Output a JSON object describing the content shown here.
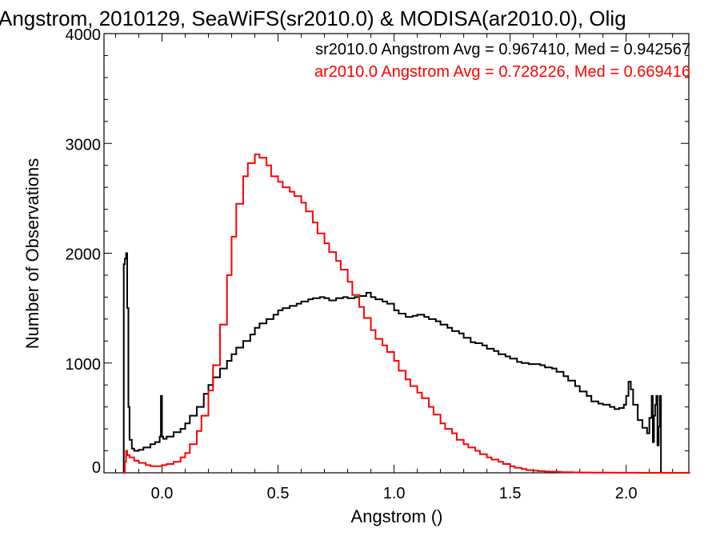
{
  "chart_data": {
    "type": "line",
    "title": "Angstrom, 2010129, SeaWiFS(sr2010.0) & MODISA(ar2010.0), Olig",
    "xlabel": "Angstrom ()",
    "ylabel": "Number of Observations",
    "xlim": [
      -0.25,
      2.27
    ],
    "ylim": [
      0,
      4000
    ],
    "x_ticks": [
      "0.0",
      "0.5",
      "1.0",
      "1.5",
      "2.0"
    ],
    "y_ticks": [
      "0",
      "1000",
      "2000",
      "3000",
      "4000"
    ],
    "grid": false,
    "annotations": [
      {
        "text": "sr2010.0 Angstrom Avg = 0.967410, Med = 0.942567",
        "color": "#000000"
      },
      {
        "text": "ar2010.0 Angstrom Avg = 0.728226, Med = 0.669416",
        "color": "#ff0000"
      }
    ],
    "series": [
      {
        "color": "#000000",
        "x": [
          -0.17,
          -0.165,
          -0.16,
          -0.155,
          -0.15,
          -0.145,
          -0.14,
          -0.13,
          -0.12,
          -0.1,
          -0.08,
          -0.05,
          -0.03,
          -0.01,
          -0.005,
          0.0,
          0.005,
          0.02,
          0.05,
          0.08,
          0.1,
          0.12,
          0.15,
          0.18,
          0.2,
          0.22,
          0.25,
          0.28,
          0.3,
          0.32,
          0.35,
          0.38,
          0.4,
          0.42,
          0.45,
          0.48,
          0.5,
          0.52,
          0.55,
          0.58,
          0.6,
          0.63,
          0.65,
          0.68,
          0.7,
          0.72,
          0.75,
          0.78,
          0.8,
          0.83,
          0.85,
          0.88,
          0.9,
          0.92,
          0.95,
          0.97,
          1.0,
          1.02,
          1.05,
          1.08,
          1.1,
          1.13,
          1.15,
          1.18,
          1.2,
          1.23,
          1.25,
          1.28,
          1.3,
          1.33,
          1.35,
          1.38,
          1.4,
          1.43,
          1.45,
          1.48,
          1.5,
          1.53,
          1.55,
          1.58,
          1.6,
          1.63,
          1.65,
          1.68,
          1.7,
          1.73,
          1.75,
          1.78,
          1.8,
          1.83,
          1.85,
          1.88,
          1.9,
          1.93,
          1.95,
          1.97,
          1.99,
          2.0,
          2.01,
          2.02,
          2.03,
          2.05,
          2.07,
          2.09,
          2.1,
          2.11,
          2.115,
          2.12,
          2.125,
          2.13,
          2.135,
          2.14,
          2.145,
          2.15
        ],
        "y": [
          0,
          1900,
          1950,
          2000,
          1500,
          600,
          300,
          220,
          200,
          210,
          230,
          260,
          280,
          330,
          700,
          330,
          310,
          330,
          370,
          400,
          450,
          520,
          600,
          720,
          800,
          870,
          950,
          1020,
          1080,
          1140,
          1200,
          1260,
          1320,
          1360,
          1400,
          1440,
          1480,
          1500,
          1520,
          1540,
          1560,
          1580,
          1590,
          1600,
          1590,
          1570,
          1590,
          1600,
          1590,
          1600,
          1610,
          1640,
          1600,
          1580,
          1560,
          1540,
          1480,
          1450,
          1420,
          1430,
          1440,
          1420,
          1400,
          1380,
          1350,
          1320,
          1290,
          1270,
          1230,
          1190,
          1180,
          1160,
          1130,
          1110,
          1080,
          1060,
          1040,
          1010,
          1000,
          990,
          990,
          980,
          960,
          950,
          920,
          880,
          840,
          790,
          740,
          700,
          650,
          630,
          620,
          600,
          580,
          590,
          620,
          700,
          830,
          760,
          620,
          480,
          410,
          360,
          500,
          700,
          280,
          520,
          620,
          700,
          250,
          420,
          700,
          0
        ]
      },
      {
        "color": "#ff0000",
        "x": [
          -0.17,
          -0.16,
          -0.155,
          -0.15,
          -0.14,
          -0.12,
          -0.1,
          -0.07,
          -0.05,
          -0.02,
          0.0,
          0.02,
          0.05,
          0.08,
          0.1,
          0.12,
          0.15,
          0.17,
          0.2,
          0.22,
          0.25,
          0.28,
          0.3,
          0.32,
          0.35,
          0.37,
          0.4,
          0.42,
          0.45,
          0.47,
          0.5,
          0.52,
          0.55,
          0.57,
          0.6,
          0.62,
          0.65,
          0.67,
          0.7,
          0.72,
          0.75,
          0.77,
          0.8,
          0.82,
          0.85,
          0.87,
          0.9,
          0.92,
          0.95,
          0.97,
          1.0,
          1.02,
          1.05,
          1.07,
          1.1,
          1.12,
          1.15,
          1.17,
          1.2,
          1.22,
          1.25,
          1.27,
          1.3,
          1.32,
          1.35,
          1.37,
          1.4,
          1.42,
          1.45,
          1.47,
          1.5,
          1.52,
          1.55,
          1.57,
          1.6,
          1.62,
          1.65,
          1.67,
          1.7,
          1.72,
          1.75,
          1.77,
          1.8,
          1.85,
          1.9,
          1.95,
          2.0,
          2.05,
          2.1,
          2.15,
          2.2,
          2.27
        ],
        "y": [
          0,
          100,
          200,
          160,
          140,
          110,
          90,
          70,
          60,
          60,
          70,
          80,
          100,
          140,
          180,
          260,
          380,
          520,
          750,
          980,
          1350,
          1800,
          2150,
          2450,
          2700,
          2820,
          2900,
          2870,
          2800,
          2700,
          2650,
          2600,
          2560,
          2520,
          2460,
          2380,
          2280,
          2180,
          2090,
          2010,
          1930,
          1850,
          1740,
          1620,
          1510,
          1410,
          1300,
          1220,
          1160,
          1100,
          1020,
          930,
          850,
          790,
          730,
          680,
          600,
          530,
          450,
          400,
          360,
          300,
          260,
          230,
          200,
          170,
          140,
          120,
          100,
          80,
          60,
          45,
          35,
          25,
          20,
          15,
          12,
          10,
          8,
          6,
          5,
          4,
          3,
          2,
          2,
          1,
          1,
          0,
          0,
          0,
          0,
          0
        ]
      }
    ]
  }
}
